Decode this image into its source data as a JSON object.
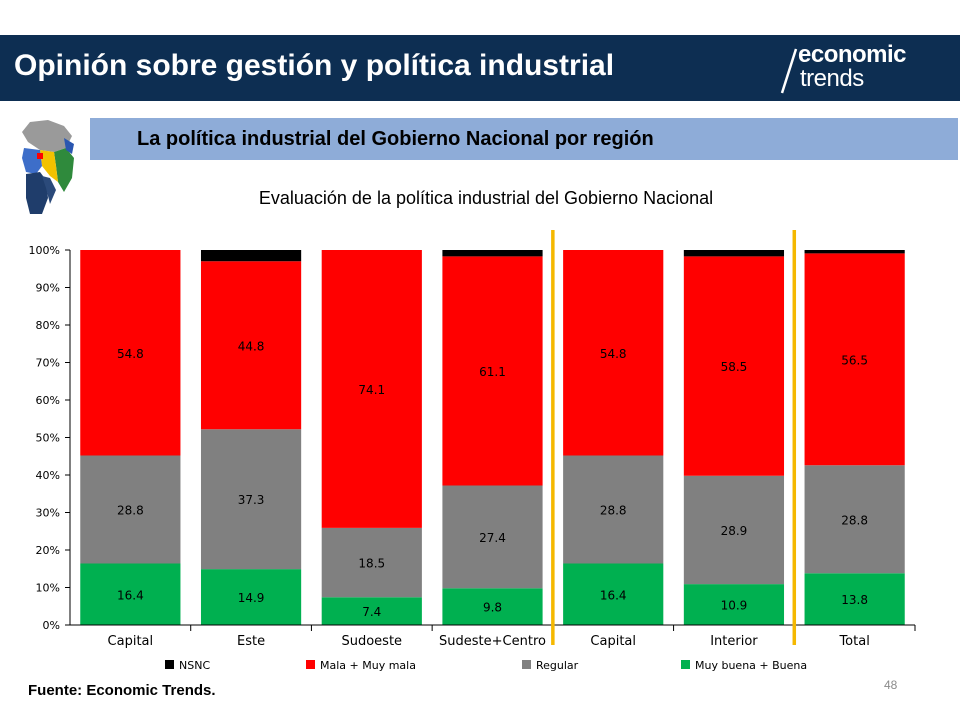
{
  "header": {
    "title": "Opinión sobre gestión y política industrial",
    "logo_line1": "economic",
    "logo_line2": "trends"
  },
  "subheader": {
    "title": "La política industrial del Gobierno Nacional por región"
  },
  "colors": {
    "header_bg": "#0d2e52",
    "subheader_bg": "#8eacd8",
    "nsnc": "#000000",
    "mala": "#ff0000",
    "regular": "#808080",
    "buena": "#00b050",
    "divider": "#f5b800"
  },
  "chart_data": {
    "type": "bar",
    "stacked": true,
    "percent_stacked": true,
    "title": "Evaluación de la política industrial del Gobierno Nacional",
    "categories": [
      "Capital",
      "Este",
      "Sudoeste",
      "Sudeste+Centro",
      "Capital",
      "Interior",
      "Total"
    ],
    "ylim": [
      0,
      100
    ],
    "yticks": [
      "0%",
      "10%",
      "20%",
      "30%",
      "40%",
      "50%",
      "60%",
      "70%",
      "80%",
      "90%",
      "100%"
    ],
    "legend_position": "bottom",
    "vertical_dividers_after_categories": [
      3,
      5
    ],
    "series": [
      {
        "name": "Muy buena + Buena",
        "color": "#00b050",
        "values": [
          16.4,
          14.9,
          7.4,
          9.8,
          16.4,
          10.9,
          13.8
        ]
      },
      {
        "name": "Regular",
        "color": "#808080",
        "values": [
          28.8,
          37.3,
          18.5,
          27.4,
          28.8,
          28.9,
          28.8
        ]
      },
      {
        "name": "Mala + Muy mala",
        "color": "#ff0000",
        "values": [
          54.8,
          44.8,
          74.1,
          61.1,
          54.8,
          58.5,
          56.5
        ]
      },
      {
        "name": "NSNC",
        "color": "#000000",
        "values": [
          0.0,
          3.0,
          0.0,
          1.7,
          0.0,
          1.7,
          0.9
        ]
      }
    ],
    "legend_order": [
      "NSNC",
      "Mala + Muy mala",
      "Regular",
      "Muy buena + Buena"
    ]
  },
  "footer": {
    "source": "Fuente: Economic Trends.",
    "page_number": "48"
  }
}
